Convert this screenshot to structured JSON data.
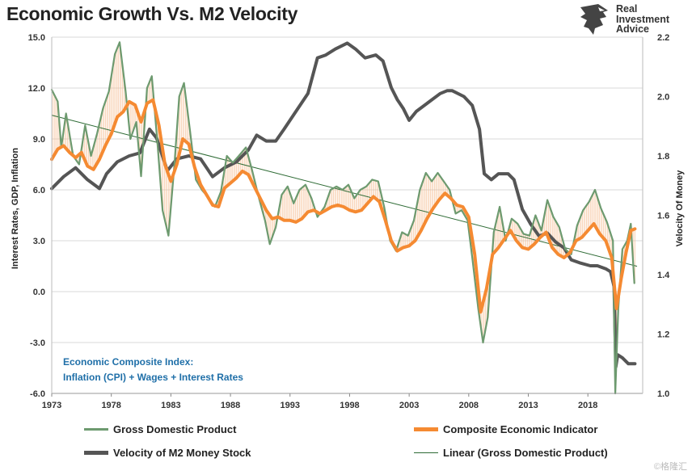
{
  "header": {
    "title": "Economic Growth Vs. M2 Velocity",
    "logo": {
      "line1": "Real",
      "line2": "Investment",
      "line3": "Advice"
    }
  },
  "watermark": "©格隆汇",
  "chart_data": {
    "type": "line",
    "title": "Economic Growth Vs. M2 Velocity",
    "ylabel": "Interest Rates, GDP, Inflation",
    "y2label": "Velocity Of Money",
    "xlim": [
      1973,
      2022.6
    ],
    "ylim": [
      -6,
      15
    ],
    "y2lim": [
      1.0,
      2.2
    ],
    "x_ticks": [
      "1973",
      "1978",
      "1983",
      "1988",
      "1993",
      "1998",
      "2003",
      "2008",
      "2013",
      "2018"
    ],
    "y_ticks": [
      "15.0",
      "12.0",
      "9.0",
      "6.0",
      "3.0",
      "0.0",
      "-3.0",
      "-6.0"
    ],
    "y2_ticks": [
      "2.2",
      "2.0",
      "1.8",
      "1.6",
      "1.4",
      "1.2",
      "1.0"
    ],
    "grid": "horizontal",
    "annotation": {
      "line1": "Economic Composite Index:",
      "line2": "Inflation (CPI) + Wages + Interest Rates"
    },
    "colors": {
      "gdp": "#6d9a6f",
      "composite": "#f58a32",
      "velocity": "#555555",
      "linear": "#2e6b35",
      "fill": "#f5b98a"
    },
    "series": [
      {
        "name": "Gross Domestic Product",
        "axis": "left",
        "points": [
          [
            1973,
            11.9
          ],
          [
            1973.5,
            11.2
          ],
          [
            1973.8,
            8.5
          ],
          [
            1974.2,
            10.5
          ],
          [
            1974.8,
            8.0
          ],
          [
            1975.3,
            7.5
          ],
          [
            1975.8,
            9.8
          ],
          [
            1976.3,
            8.0
          ],
          [
            1976.8,
            9.3
          ],
          [
            1977.3,
            10.8
          ],
          [
            1977.8,
            11.8
          ],
          [
            1978.3,
            14.0
          ],
          [
            1978.7,
            14.7
          ],
          [
            1979.2,
            11.8
          ],
          [
            1979.6,
            9.0
          ],
          [
            1980.1,
            10.0
          ],
          [
            1980.5,
            6.8
          ],
          [
            1981.0,
            12.0
          ],
          [
            1981.4,
            12.7
          ],
          [
            1981.9,
            8.5
          ],
          [
            1982.3,
            4.8
          ],
          [
            1982.8,
            3.3
          ],
          [
            1983.3,
            7.5
          ],
          [
            1983.7,
            11.5
          ],
          [
            1984.1,
            12.3
          ],
          [
            1984.6,
            9.5
          ],
          [
            1985.1,
            6.6
          ],
          [
            1985.6,
            6.0
          ],
          [
            1986.2,
            5.5
          ],
          [
            1986.7,
            5.0
          ],
          [
            1987.2,
            5.9
          ],
          [
            1987.7,
            8.0
          ],
          [
            1988.2,
            7.6
          ],
          [
            1988.7,
            8.0
          ],
          [
            1989.3,
            8.5
          ],
          [
            1989.8,
            7.2
          ],
          [
            1990.4,
            5.5
          ],
          [
            1990.9,
            4.2
          ],
          [
            1991.3,
            2.8
          ],
          [
            1991.8,
            3.8
          ],
          [
            1992.3,
            5.7
          ],
          [
            1992.8,
            6.2
          ],
          [
            1993.3,
            5.2
          ],
          [
            1993.8,
            6.0
          ],
          [
            1994.3,
            6.3
          ],
          [
            1994.8,
            5.5
          ],
          [
            1995.3,
            4.4
          ],
          [
            1995.9,
            5.0
          ],
          [
            1996.4,
            6.0
          ],
          [
            1996.9,
            6.2
          ],
          [
            1997.4,
            6.0
          ],
          [
            1997.9,
            6.3
          ],
          [
            1998.4,
            5.5
          ],
          [
            1998.9,
            6.0
          ],
          [
            1999.4,
            6.2
          ],
          [
            1999.9,
            6.6
          ],
          [
            2000.4,
            6.5
          ],
          [
            2000.9,
            5.0
          ],
          [
            2001.4,
            3.0
          ],
          [
            2001.9,
            2.4
          ],
          [
            2002.4,
            3.5
          ],
          [
            2002.9,
            3.3
          ],
          [
            2003.4,
            4.2
          ],
          [
            2003.9,
            6.0
          ],
          [
            2004.4,
            7.0
          ],
          [
            2004.9,
            6.5
          ],
          [
            2005.4,
            7.0
          ],
          [
            2005.9,
            6.5
          ],
          [
            2006.4,
            6.0
          ],
          [
            2006.9,
            4.6
          ],
          [
            2007.4,
            4.8
          ],
          [
            2007.9,
            4.2
          ],
          [
            2008.3,
            2.0
          ],
          [
            2008.8,
            -1.0
          ],
          [
            2009.2,
            -3.0
          ],
          [
            2009.6,
            -1.5
          ],
          [
            2010.1,
            3.5
          ],
          [
            2010.6,
            5.0
          ],
          [
            2011.1,
            3.0
          ],
          [
            2011.6,
            4.3
          ],
          [
            2012.1,
            4.0
          ],
          [
            2012.6,
            3.4
          ],
          [
            2013.1,
            3.3
          ],
          [
            2013.6,
            4.5
          ],
          [
            2014.1,
            3.6
          ],
          [
            2014.6,
            5.4
          ],
          [
            2015.1,
            4.4
          ],
          [
            2015.6,
            3.8
          ],
          [
            2016.1,
            2.5
          ],
          [
            2016.6,
            2.2
          ],
          [
            2017.1,
            3.9
          ],
          [
            2017.6,
            4.8
          ],
          [
            2018.1,
            5.3
          ],
          [
            2018.6,
            6.0
          ],
          [
            2019.1,
            4.9
          ],
          [
            2019.6,
            4.1
          ],
          [
            2020.1,
            3.0
          ],
          [
            2020.3,
            -6.0
          ],
          [
            2020.55,
            -1.0
          ],
          [
            2020.9,
            2.5
          ],
          [
            2021.3,
            3.0
          ],
          [
            2021.6,
            4.0
          ],
          [
            2021.9,
            0.5
          ]
        ]
      },
      {
        "name": "Composite Economic Indicator",
        "axis": "left",
        "points": [
          [
            1973,
            7.8
          ],
          [
            1973.5,
            8.4
          ],
          [
            1974,
            8.6
          ],
          [
            1974.5,
            8.2
          ],
          [
            1975,
            7.9
          ],
          [
            1975.5,
            8.2
          ],
          [
            1976,
            7.4
          ],
          [
            1976.5,
            7.2
          ],
          [
            1977,
            7.8
          ],
          [
            1977.5,
            8.6
          ],
          [
            1978,
            9.3
          ],
          [
            1978.5,
            10.3
          ],
          [
            1979,
            10.6
          ],
          [
            1979.5,
            11.2
          ],
          [
            1980,
            11.0
          ],
          [
            1980.5,
            10.0
          ],
          [
            1981,
            11.1
          ],
          [
            1981.5,
            11.3
          ],
          [
            1982,
            9.8
          ],
          [
            1982.5,
            7.5
          ],
          [
            1983,
            6.5
          ],
          [
            1983.5,
            7.5
          ],
          [
            1984,
            9.0
          ],
          [
            1984.5,
            8.7
          ],
          [
            1985,
            7.3
          ],
          [
            1985.5,
            6.3
          ],
          [
            1986,
            5.7
          ],
          [
            1986.5,
            5.1
          ],
          [
            1987,
            5.0
          ],
          [
            1987.5,
            6.1
          ],
          [
            1988,
            6.4
          ],
          [
            1988.5,
            6.7
          ],
          [
            1989,
            7.1
          ],
          [
            1989.5,
            6.9
          ],
          [
            1990,
            6.2
          ],
          [
            1990.5,
            5.5
          ],
          [
            1991,
            4.8
          ],
          [
            1991.5,
            4.3
          ],
          [
            1992,
            4.4
          ],
          [
            1992.5,
            4.2
          ],
          [
            1993,
            4.2
          ],
          [
            1993.5,
            4.1
          ],
          [
            1994,
            4.3
          ],
          [
            1994.5,
            4.7
          ],
          [
            1995,
            4.8
          ],
          [
            1995.5,
            4.6
          ],
          [
            1996,
            4.8
          ],
          [
            1996.5,
            5.0
          ],
          [
            1997,
            5.1
          ],
          [
            1997.5,
            5.0
          ],
          [
            1998,
            4.8
          ],
          [
            1998.5,
            4.7
          ],
          [
            1999,
            4.8
          ],
          [
            1999.5,
            5.2
          ],
          [
            2000,
            5.6
          ],
          [
            2000.5,
            5.3
          ],
          [
            2001,
            4.2
          ],
          [
            2001.5,
            3.0
          ],
          [
            2002,
            2.4
          ],
          [
            2002.5,
            2.6
          ],
          [
            2003,
            2.7
          ],
          [
            2003.5,
            3.0
          ],
          [
            2004,
            3.6
          ],
          [
            2004.5,
            4.3
          ],
          [
            2005,
            4.9
          ],
          [
            2005.5,
            5.4
          ],
          [
            2006,
            5.8
          ],
          [
            2006.5,
            5.5
          ],
          [
            2007,
            5.1
          ],
          [
            2007.5,
            5.0
          ],
          [
            2008,
            4.4
          ],
          [
            2008.5,
            2.2
          ],
          [
            2009,
            -1.2
          ],
          [
            2009.5,
            0.2
          ],
          [
            2010,
            2.2
          ],
          [
            2010.5,
            2.6
          ],
          [
            2011,
            3.1
          ],
          [
            2011.5,
            3.6
          ],
          [
            2012,
            3.0
          ],
          [
            2012.5,
            2.6
          ],
          [
            2013,
            2.5
          ],
          [
            2013.5,
            2.8
          ],
          [
            2014,
            3.2
          ],
          [
            2014.5,
            3.5
          ],
          [
            2015,
            2.6
          ],
          [
            2015.5,
            2.2
          ],
          [
            2016,
            2.0
          ],
          [
            2016.5,
            2.3
          ],
          [
            2017,
            3.0
          ],
          [
            2017.5,
            3.2
          ],
          [
            2018,
            3.6
          ],
          [
            2018.5,
            4.0
          ],
          [
            2019,
            3.4
          ],
          [
            2019.5,
            3.0
          ],
          [
            2020,
            2.0
          ],
          [
            2020.4,
            -1.0
          ],
          [
            2020.8,
            0.8
          ],
          [
            2021.2,
            2.3
          ],
          [
            2021.6,
            3.6
          ],
          [
            2021.95,
            3.7
          ]
        ]
      },
      {
        "name": "Velocity of M2 Money Stock",
        "axis": "right",
        "points": [
          [
            1973,
            1.69
          ],
          [
            1974,
            1.73
          ],
          [
            1975,
            1.76
          ],
          [
            1976,
            1.72
          ],
          [
            1977,
            1.69
          ],
          [
            1977.6,
            1.74
          ],
          [
            1978.5,
            1.78
          ],
          [
            1979.5,
            1.8
          ],
          [
            1980.4,
            1.81
          ],
          [
            1981.2,
            1.89
          ],
          [
            1981.8,
            1.86
          ],
          [
            1982.7,
            1.75
          ],
          [
            1983.5,
            1.79
          ],
          [
            1984.5,
            1.8
          ],
          [
            1985.5,
            1.79
          ],
          [
            1986.5,
            1.73
          ],
          [
            1987.5,
            1.76
          ],
          [
            1988.5,
            1.78
          ],
          [
            1989.5,
            1.82
          ],
          [
            1990.2,
            1.87
          ],
          [
            1991,
            1.85
          ],
          [
            1991.8,
            1.85
          ],
          [
            1992.5,
            1.89
          ],
          [
            1993.5,
            1.95
          ],
          [
            1994.5,
            2.01
          ],
          [
            1995.3,
            2.13
          ],
          [
            1996,
            2.14
          ],
          [
            1996.8,
            2.16
          ],
          [
            1997.8,
            2.18
          ],
          [
            1998.5,
            2.16
          ],
          [
            1999.3,
            2.13
          ],
          [
            2000.2,
            2.14
          ],
          [
            2000.8,
            2.12
          ],
          [
            2001.5,
            2.03
          ],
          [
            2002,
            1.99
          ],
          [
            2002.5,
            1.96
          ],
          [
            2003,
            1.92
          ],
          [
            2003.6,
            1.95
          ],
          [
            2004.6,
            1.98
          ],
          [
            2005.6,
            2.01
          ],
          [
            2006.2,
            2.02
          ],
          [
            2006.6,
            2.02
          ],
          [
            2007.6,
            2.0
          ],
          [
            2008.3,
            1.97
          ],
          [
            2008.9,
            1.89
          ],
          [
            2009.3,
            1.74
          ],
          [
            2009.9,
            1.72
          ],
          [
            2010.5,
            1.74
          ],
          [
            2011.3,
            1.74
          ],
          [
            2011.8,
            1.72
          ],
          [
            2012.5,
            1.62
          ],
          [
            2013.2,
            1.57
          ],
          [
            2013.9,
            1.53
          ],
          [
            2014.6,
            1.54
          ],
          [
            2015.3,
            1.51
          ],
          [
            2016,
            1.49
          ],
          [
            2016.6,
            1.45
          ],
          [
            2017.3,
            1.44
          ],
          [
            2018.2,
            1.43
          ],
          [
            2018.8,
            1.43
          ],
          [
            2019.5,
            1.42
          ],
          [
            2019.9,
            1.41
          ],
          [
            2020.2,
            1.36
          ],
          [
            2020.35,
            1.09
          ],
          [
            2020.5,
            1.13
          ],
          [
            2020.9,
            1.12
          ],
          [
            2021.4,
            1.1
          ],
          [
            2021.95,
            1.1
          ]
        ]
      },
      {
        "name": "Linear (Gross Domestic Product)",
        "axis": "left",
        "points": [
          [
            1973,
            10.4
          ],
          [
            2022.1,
            1.5
          ]
        ]
      }
    ]
  }
}
